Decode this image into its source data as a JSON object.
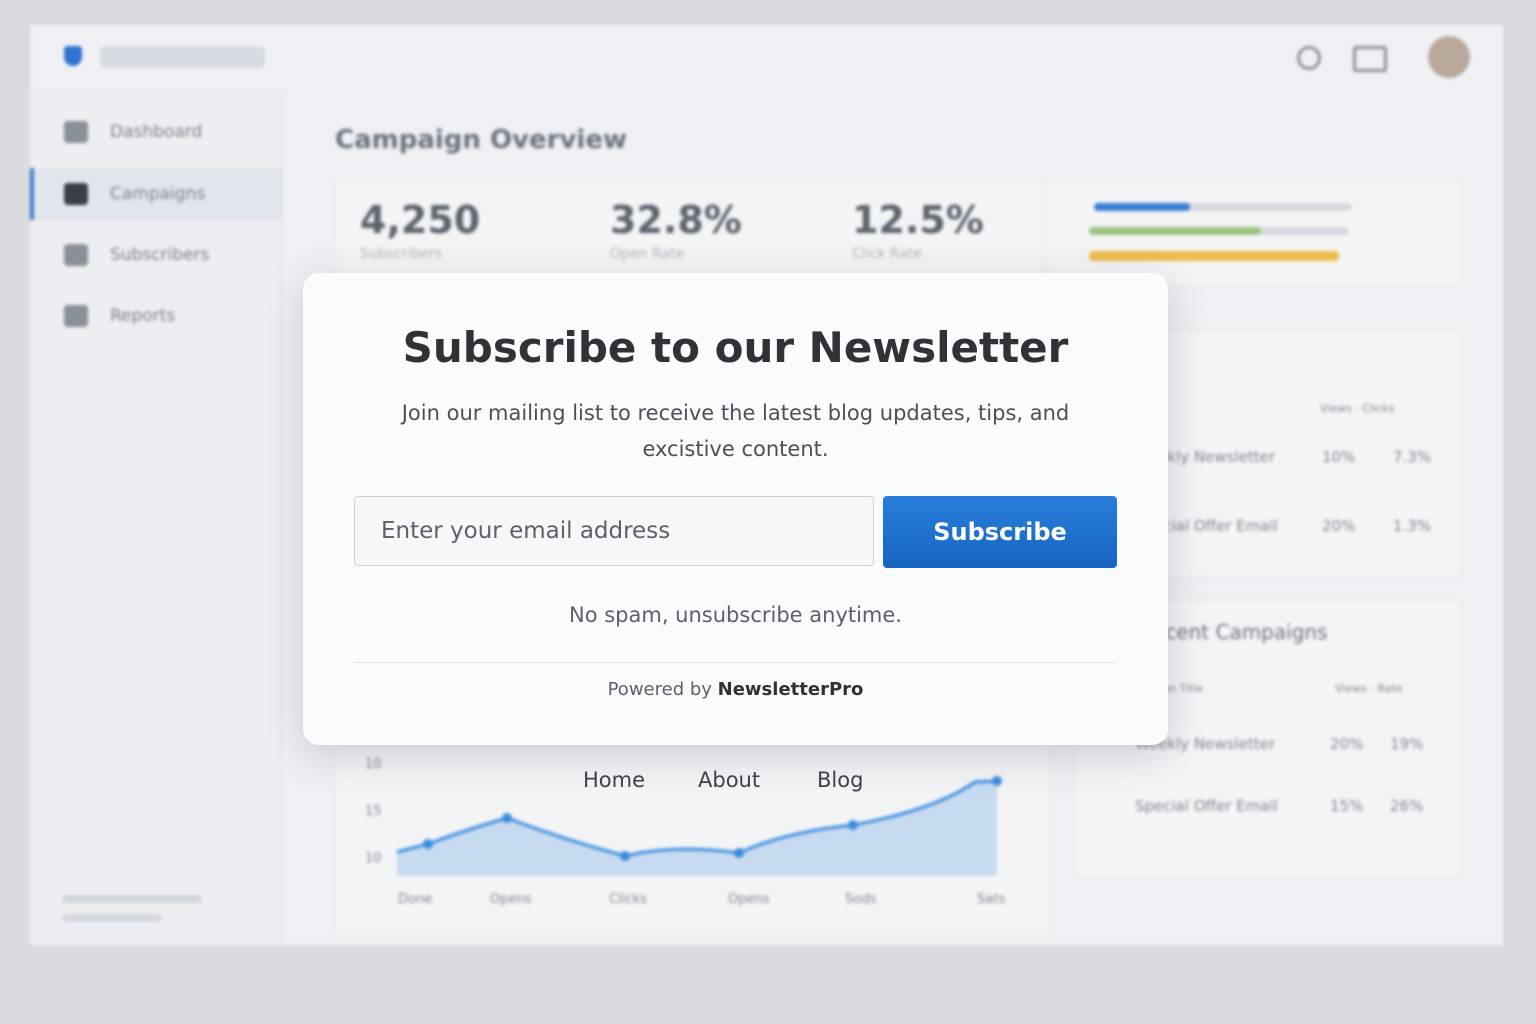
{
  "sidebar": {
    "items": [
      "Dashboard",
      "Campaigns",
      "Subscribers",
      "Reports"
    ]
  },
  "overview": {
    "title": "Campaign Overview",
    "stats": [
      {
        "value": "4,250",
        "label": "Subscribers"
      },
      {
        "value": "32.8%",
        "label": "Open Rate"
      },
      {
        "value": "12.5%",
        "label": "Click Rate"
      }
    ]
  },
  "performance_table": {
    "header": "Views · Clicks",
    "rows": [
      [
        "Weekly Newsletter",
        "10%",
        "7.3%"
      ],
      [
        "Special Offer Email",
        "20%",
        "1.3%"
      ]
    ]
  },
  "recent_campaigns": {
    "title": "Recent Campaigns",
    "header": [
      "Campaign Title",
      "Views · Rate"
    ],
    "rows": [
      [
        "Weekly Newsletter",
        "20%",
        "19%"
      ],
      [
        "Special Offer Email",
        "15%",
        "26%"
      ]
    ]
  },
  "chart": {
    "nav": [
      "Home",
      "About",
      "Blog"
    ],
    "y_labels": [
      "10",
      "15",
      "10"
    ],
    "x_labels": [
      "Done",
      "Opens",
      "Clicks",
      "Opens",
      "Sods",
      "Sats"
    ]
  },
  "modal": {
    "title": "Subscribe to our Newsletter",
    "description": "Join our mailing list to receive the latest blog updates, tips, and excistive content.",
    "email_placeholder": "Enter your email address",
    "button": "Subscribe",
    "note": "No spam, unsubscribe anytime.",
    "powered_by": "Powered by",
    "brand": "NewsletterPro"
  }
}
